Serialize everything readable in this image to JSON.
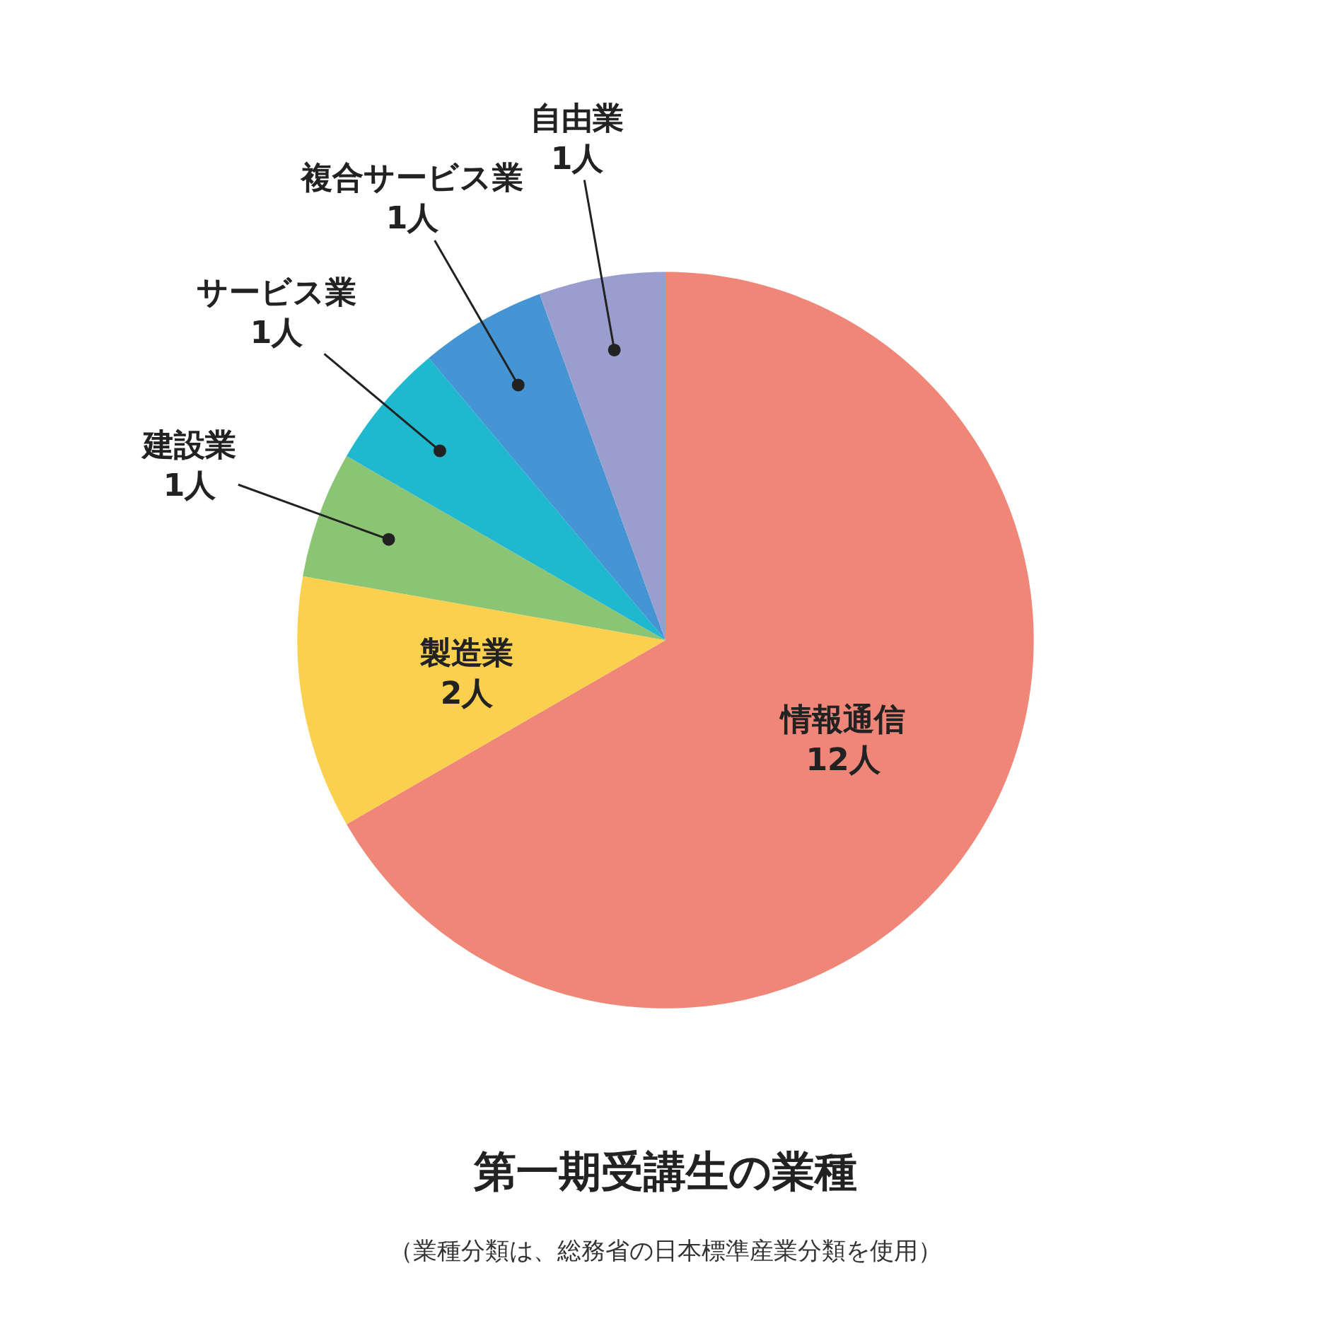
{
  "chart_data": {
    "type": "pie",
    "title": "第一期受講生の業種",
    "subtitle": "（業種分類は、総務省の日本標準産業分類を使用）",
    "categories": [
      "情報通信",
      "製造業",
      "建設業",
      "サービス業",
      "複合サービス業",
      "自由業"
    ],
    "values": [
      12,
      2,
      1,
      1,
      1,
      1
    ],
    "value_labels": [
      "12人",
      "2人",
      "1人",
      "1人",
      "1人",
      "1人"
    ],
    "colors": [
      "#ef8677",
      "#fbd04f",
      "#8bc574",
      "#1fb8cf",
      "#4594d4",
      "#9a9ecf"
    ]
  }
}
